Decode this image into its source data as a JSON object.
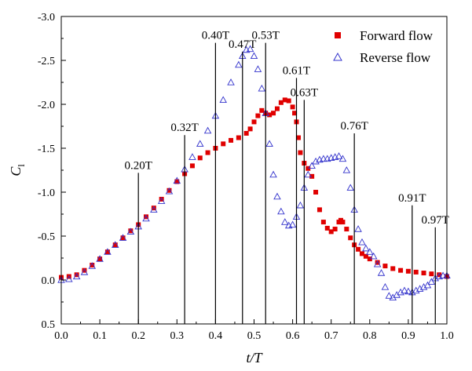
{
  "chart_data": {
    "type": "scatter",
    "xlabel": "t/T",
    "ylabel_main": "C",
    "ylabel_sub": "l",
    "xlim": [
      0.0,
      1.0
    ],
    "ylim": [
      0.5,
      -3.0
    ],
    "y_inverted": true,
    "xticks": [
      0.0,
      0.1,
      0.2,
      0.3,
      0.4,
      0.5,
      0.6,
      0.7,
      0.8,
      0.9,
      1.0
    ],
    "xtick_labels": [
      "0.0",
      "0.1",
      "0.2",
      "0.3",
      "0.4",
      "0.5",
      "0.6",
      "0.7",
      "0.8",
      "0.9",
      "1.0"
    ],
    "yticks": [
      -3.0,
      -2.5,
      -2.0,
      -1.5,
      -1.0,
      -0.5,
      0.0,
      0.5
    ],
    "ytick_labels": [
      "-3.0",
      "-2.5",
      "-2.0",
      "-1.5",
      "-1.0",
      "-0.5",
      "0.0",
      "0.5"
    ],
    "grid": false,
    "legend_position": "top-right",
    "series": [
      {
        "name": "Forward flow",
        "marker": "filled-square",
        "color": "#e00000",
        "points": [
          [
            0.0,
            -0.03
          ],
          [
            0.02,
            -0.04
          ],
          [
            0.04,
            -0.06
          ],
          [
            0.06,
            -0.11
          ],
          [
            0.08,
            -0.17
          ],
          [
            0.1,
            -0.24
          ],
          [
            0.12,
            -0.32
          ],
          [
            0.14,
            -0.4
          ],
          [
            0.16,
            -0.48
          ],
          [
            0.18,
            -0.56
          ],
          [
            0.2,
            -0.63
          ],
          [
            0.22,
            -0.72
          ],
          [
            0.24,
            -0.82
          ],
          [
            0.26,
            -0.92
          ],
          [
            0.28,
            -1.02
          ],
          [
            0.3,
            -1.12
          ],
          [
            0.32,
            -1.21
          ],
          [
            0.34,
            -1.3
          ],
          [
            0.36,
            -1.39
          ],
          [
            0.38,
            -1.45
          ],
          [
            0.4,
            -1.5
          ],
          [
            0.42,
            -1.55
          ],
          [
            0.44,
            -1.59
          ],
          [
            0.46,
            -1.62
          ],
          [
            0.48,
            -1.67
          ],
          [
            0.49,
            -1.72
          ],
          [
            0.5,
            -1.8
          ],
          [
            0.51,
            -1.87
          ],
          [
            0.52,
            -1.93
          ],
          [
            0.53,
            -1.9
          ],
          [
            0.54,
            -1.88
          ],
          [
            0.55,
            -1.9
          ],
          [
            0.56,
            -1.95
          ],
          [
            0.57,
            -2.02
          ],
          [
            0.58,
            -2.05
          ],
          [
            0.59,
            -2.04
          ],
          [
            0.6,
            -1.97
          ],
          [
            0.605,
            -1.9
          ],
          [
            0.61,
            -1.8
          ],
          [
            0.615,
            -1.62
          ],
          [
            0.62,
            -1.45
          ],
          [
            0.63,
            -1.33
          ],
          [
            0.64,
            -1.27
          ],
          [
            0.65,
            -1.18
          ],
          [
            0.66,
            -1.0
          ],
          [
            0.67,
            -0.8
          ],
          [
            0.68,
            -0.66
          ],
          [
            0.69,
            -0.59
          ],
          [
            0.7,
            -0.55
          ],
          [
            0.71,
            -0.58
          ],
          [
            0.72,
            -0.66
          ],
          [
            0.725,
            -0.68
          ],
          [
            0.73,
            -0.66
          ],
          [
            0.74,
            -0.58
          ],
          [
            0.75,
            -0.48
          ],
          [
            0.76,
            -0.4
          ],
          [
            0.77,
            -0.35
          ],
          [
            0.78,
            -0.3
          ],
          [
            0.79,
            -0.27
          ],
          [
            0.8,
            -0.24
          ],
          [
            0.82,
            -0.2
          ],
          [
            0.84,
            -0.16
          ],
          [
            0.86,
            -0.13
          ],
          [
            0.88,
            -0.11
          ],
          [
            0.9,
            -0.1
          ],
          [
            0.92,
            -0.09
          ],
          [
            0.94,
            -0.08
          ],
          [
            0.96,
            -0.07
          ],
          [
            0.98,
            -0.06
          ],
          [
            1.0,
            -0.04
          ]
        ]
      },
      {
        "name": "Reverse flow",
        "marker": "hollow-triangle",
        "color": "#3333cc",
        "points": [
          [
            0.0,
            0.0
          ],
          [
            0.02,
            -0.01
          ],
          [
            0.04,
            -0.04
          ],
          [
            0.06,
            -0.09
          ],
          [
            0.08,
            -0.16
          ],
          [
            0.1,
            -0.24
          ],
          [
            0.12,
            -0.32
          ],
          [
            0.14,
            -0.4
          ],
          [
            0.16,
            -0.48
          ],
          [
            0.18,
            -0.55
          ],
          [
            0.2,
            -0.61
          ],
          [
            0.22,
            -0.7
          ],
          [
            0.24,
            -0.8
          ],
          [
            0.26,
            -0.9
          ],
          [
            0.28,
            -1.01
          ],
          [
            0.3,
            -1.13
          ],
          [
            0.32,
            -1.26
          ],
          [
            0.34,
            -1.4
          ],
          [
            0.36,
            -1.55
          ],
          [
            0.38,
            -1.7
          ],
          [
            0.4,
            -1.87
          ],
          [
            0.42,
            -2.05
          ],
          [
            0.44,
            -2.25
          ],
          [
            0.46,
            -2.45
          ],
          [
            0.47,
            -2.55
          ],
          [
            0.48,
            -2.62
          ],
          [
            0.49,
            -2.63
          ],
          [
            0.5,
            -2.55
          ],
          [
            0.51,
            -2.4
          ],
          [
            0.52,
            -2.18
          ],
          [
            0.53,
            -1.9
          ],
          [
            0.54,
            -1.55
          ],
          [
            0.55,
            -1.2
          ],
          [
            0.56,
            -0.95
          ],
          [
            0.57,
            -0.78
          ],
          [
            0.58,
            -0.66
          ],
          [
            0.59,
            -0.62
          ],
          [
            0.6,
            -0.63
          ],
          [
            0.61,
            -0.72
          ],
          [
            0.62,
            -0.85
          ],
          [
            0.63,
            -1.05
          ],
          [
            0.64,
            -1.2
          ],
          [
            0.65,
            -1.3
          ],
          [
            0.66,
            -1.35
          ],
          [
            0.67,
            -1.37
          ],
          [
            0.68,
            -1.38
          ],
          [
            0.69,
            -1.38
          ],
          [
            0.7,
            -1.39
          ],
          [
            0.71,
            -1.4
          ],
          [
            0.72,
            -1.41
          ],
          [
            0.73,
            -1.38
          ],
          [
            0.74,
            -1.25
          ],
          [
            0.75,
            -1.05
          ],
          [
            0.76,
            -0.8
          ],
          [
            0.77,
            -0.58
          ],
          [
            0.78,
            -0.43
          ],
          [
            0.79,
            -0.36
          ],
          [
            0.8,
            -0.32
          ],
          [
            0.81,
            -0.27
          ],
          [
            0.82,
            -0.18
          ],
          [
            0.83,
            -0.08
          ],
          [
            0.84,
            0.08
          ],
          [
            0.85,
            0.18
          ],
          [
            0.86,
            0.2
          ],
          [
            0.87,
            0.17
          ],
          [
            0.88,
            0.14
          ],
          [
            0.89,
            0.12
          ],
          [
            0.9,
            0.13
          ],
          [
            0.91,
            0.14
          ],
          [
            0.92,
            0.12
          ],
          [
            0.93,
            0.1
          ],
          [
            0.94,
            0.08
          ],
          [
            0.95,
            0.06
          ],
          [
            0.96,
            0.02
          ],
          [
            0.97,
            -0.02
          ],
          [
            0.98,
            -0.04
          ],
          [
            0.99,
            -0.05
          ],
          [
            1.0,
            -0.05
          ]
        ]
      }
    ],
    "vertical_markers": [
      {
        "x": 0.2,
        "label": "0.20T",
        "y_top": -1.22
      },
      {
        "x": 0.32,
        "label": "0.32T",
        "y_top": -1.65
      },
      {
        "x": 0.4,
        "label": "0.40T",
        "y_top": -2.7
      },
      {
        "x": 0.47,
        "label": "0.47T",
        "y_top": -2.6
      },
      {
        "x": 0.53,
        "label": "0.53T",
        "y_top": -2.7
      },
      {
        "x": 0.61,
        "label": "0.61T",
        "y_top": -2.3
      },
      {
        "x": 0.63,
        "label": "0.63T",
        "y_top": -2.05
      },
      {
        "x": 0.76,
        "label": "0.76T",
        "y_top": -1.67
      },
      {
        "x": 0.91,
        "label": "0.91T",
        "y_top": -0.85
      },
      {
        "x": 0.97,
        "label": "0.97T",
        "y_top": -0.6
      }
    ]
  }
}
